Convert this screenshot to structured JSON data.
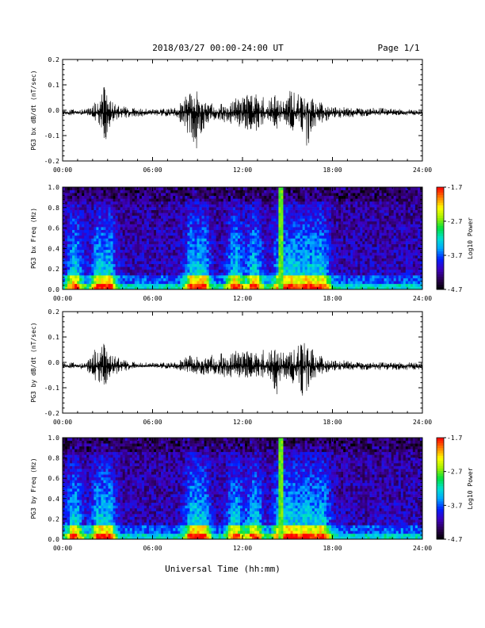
{
  "header": {
    "title": "2018/03/27  00:00-24:00 UT",
    "page": "Page 1/1"
  },
  "footer": {
    "xlabel": "Universal Time (hh:mm)"
  },
  "colors": {
    "spectrogram_scale": [
      "#000000",
      "#2b0050",
      "#3d00c0",
      "#0020ff",
      "#00a8ff",
      "#00e0d0",
      "#00e040",
      "#a0f000",
      "#ffff00",
      "#ff8000",
      "#ff0000"
    ]
  },
  "chart_data": [
    {
      "type": "line",
      "title": "",
      "ylabel": "PG3 bx dB/dt (nT/sec)",
      "xlabel": "",
      "xlim": [
        "00:00",
        "24:00"
      ],
      "ylim": [
        -0.2,
        0.2
      ],
      "x_ticks": [
        "00:00",
        "06:00",
        "12:00",
        "18:00",
        "24:00"
      ],
      "y_ticks": [
        "-0.2",
        "-0.1",
        "0.0",
        "0.1",
        "0.2"
      ],
      "baseline": -0.01,
      "envelope": {
        "x_hours": [
          0,
          1.8,
          2.4,
          2.8,
          3.1,
          3.6,
          4.5,
          6,
          7.6,
          8.2,
          8.9,
          9.5,
          10.2,
          11,
          12,
          13,
          13.5,
          14.2,
          14.7,
          15.2,
          15.8,
          16.3,
          16.8,
          17.4,
          18,
          19,
          21,
          24
        ],
        "upper": [
          0.0,
          0.01,
          0.05,
          0.1,
          0.06,
          0.02,
          0.01,
          0.005,
          0.01,
          0.06,
          0.08,
          0.04,
          0.02,
          0.03,
          0.06,
          0.07,
          0.05,
          0.06,
          0.04,
          0.08,
          0.06,
          0.04,
          0.05,
          0.03,
          0.02,
          0.01,
          0.01,
          0.0
        ],
        "lower": [
          -0.02,
          -0.02,
          -0.06,
          -0.14,
          -0.08,
          -0.04,
          -0.03,
          -0.02,
          -0.03,
          -0.08,
          -0.16,
          -0.06,
          -0.04,
          -0.05,
          -0.07,
          -0.09,
          -0.06,
          -0.08,
          -0.05,
          -0.09,
          -0.07,
          -0.15,
          -0.07,
          -0.05,
          -0.03,
          -0.03,
          -0.02,
          -0.02
        ]
      }
    },
    {
      "type": "heatmap",
      "title": "",
      "ylabel": "PG3 bx Freq (Hz)",
      "xlabel": "",
      "xlim": [
        "00:00",
        "24:00"
      ],
      "ylim": [
        0.0,
        1.0
      ],
      "x_ticks": [
        "00:00",
        "06:00",
        "12:00",
        "18:00",
        "24:00"
      ],
      "y_ticks": [
        "0.0",
        "0.2",
        "0.4",
        "0.6",
        "0.8",
        "1.0"
      ],
      "colorbar": {
        "label": "Log10 Power",
        "ticks": [
          "-1.7",
          "-2.7",
          "-3.7",
          "-4.7"
        ],
        "range": [
          -4.7,
          -1.7
        ]
      },
      "activity_hours": [
        0.8,
        2.5,
        3.0,
        8.7,
        9.3,
        11.5,
        12.8,
        14.6,
        15.3,
        16.3,
        17.3
      ],
      "strong_line_hour": 14.6
    },
    {
      "type": "line",
      "title": "",
      "ylabel": "PG3 by dB/dt (nT/sec)",
      "xlabel": "",
      "xlim": [
        "00:00",
        "24:00"
      ],
      "ylim": [
        -0.2,
        0.2
      ],
      "x_ticks": [
        "00:00",
        "06:00",
        "12:00",
        "18:00",
        "24:00"
      ],
      "y_ticks": [
        "-0.2",
        "-0.1",
        "0.0",
        "0.1",
        "0.2"
      ],
      "baseline": -0.015,
      "envelope": {
        "x_hours": [
          0,
          1.6,
          2.2,
          2.7,
          3.2,
          4.0,
          5,
          6,
          7.5,
          8.4,
          9.2,
          10,
          11,
          12,
          13,
          13.6,
          14.2,
          14.6,
          15.2,
          16.0,
          16.4,
          16.9,
          17.6,
          18.5,
          20,
          24
        ],
        "upper": [
          0.0,
          0.0,
          0.06,
          0.08,
          0.04,
          0.01,
          0.0,
          0.0,
          0.0,
          0.03,
          0.02,
          0.03,
          0.04,
          0.05,
          0.04,
          0.06,
          0.05,
          0.05,
          0.04,
          0.08,
          0.07,
          0.04,
          0.02,
          0.01,
          0.0,
          0.0
        ],
        "lower": [
          -0.02,
          -0.03,
          -0.08,
          -0.11,
          -0.06,
          -0.04,
          -0.02,
          -0.02,
          -0.03,
          -0.04,
          -0.05,
          -0.05,
          -0.06,
          -0.06,
          -0.06,
          -0.08,
          -0.14,
          -0.09,
          -0.07,
          -0.16,
          -0.1,
          -0.06,
          -0.04,
          -0.03,
          -0.03,
          -0.03
        ]
      }
    },
    {
      "type": "heatmap",
      "title": "",
      "ylabel": "PG3 by Freq (Hz)",
      "xlabel": "Universal Time (hh:mm)",
      "xlim": [
        "00:00",
        "24:00"
      ],
      "ylim": [
        0.0,
        1.0
      ],
      "x_ticks": [
        "00:00",
        "06:00",
        "12:00",
        "18:00",
        "24:00"
      ],
      "y_ticks": [
        "0.0",
        "0.2",
        "0.4",
        "0.6",
        "0.8",
        "1.0"
      ],
      "colorbar": {
        "label": "Log10 Power",
        "ticks": [
          "-1.7",
          "-2.7",
          "-3.7",
          "-4.7"
        ],
        "range": [
          -4.7,
          -1.7
        ]
      },
      "activity_hours": [
        0.8,
        2.5,
        3.0,
        8.7,
        9.3,
        11.5,
        12.8,
        14.6,
        15.3,
        16.3,
        17.3
      ],
      "strong_line_hour": 14.6
    }
  ]
}
